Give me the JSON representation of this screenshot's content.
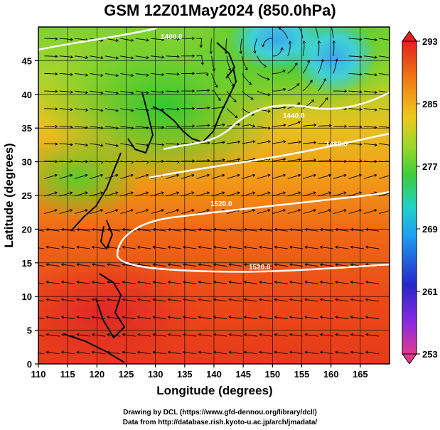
{
  "title": "GSM 12Z01May2024 (850.0hPa)",
  "xlabel": "Longitude (degrees)",
  "ylabel": "Latitude  (degrees)",
  "x_ticks": [
    "110",
    "115",
    "120",
    "125",
    "130",
    "135",
    "140",
    "145",
    "150",
    "155",
    "160",
    "165"
  ],
  "y_ticks": [
    "0",
    "5",
    "10",
    "15",
    "20",
    "25",
    "30",
    "35",
    "40",
    "45"
  ],
  "x_range": [
    110,
    170
  ],
  "y_range": [
    0,
    50
  ],
  "colorbar": {
    "ticks": [
      "293",
      "285",
      "277",
      "269",
      "261",
      "253"
    ],
    "range": [
      253,
      293
    ],
    "colors": [
      "#e23a8f",
      "#8a2be2",
      "#2626c8",
      "#1ea0f0",
      "#22d2c8",
      "#3ccd3c",
      "#98d82a",
      "#f0c81e",
      "#f07a14",
      "#e32020"
    ]
  },
  "contour_labels": [
    "1520.0",
    "1520.0",
    "1440.0",
    "1480.0",
    "1400.0"
  ],
  "credits": {
    "line1": "Drawing by DCL (https://www.gfd-dennou.org/library/dcl/)",
    "line2": "Data from http://database.rish.kyoto-u.ac.jp/arch/jmadata/"
  }
}
